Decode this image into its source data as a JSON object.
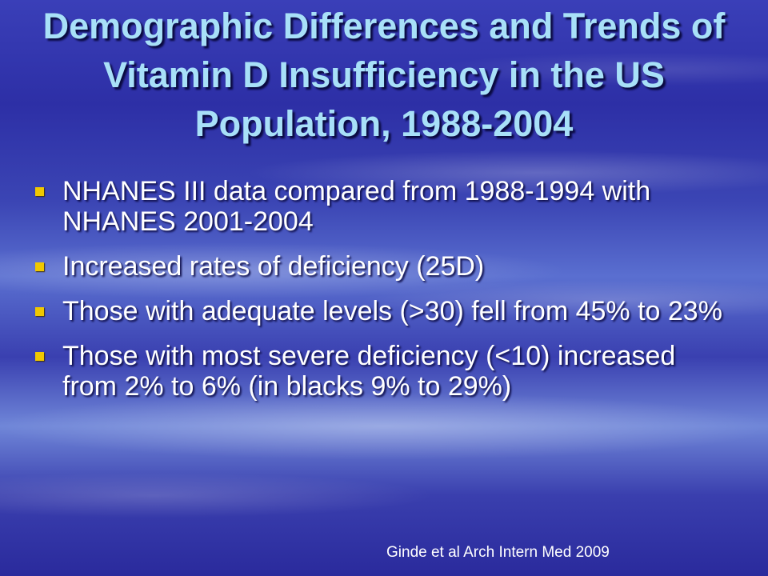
{
  "slide": {
    "title": "Demographic Differences and Trends of Vitamin D Insufficiency in the US Population, 1988-2004",
    "bullets": [
      "NHANES III data compared from 1988-1994 with NHANES 2001-2004",
      "Increased rates of deficiency (25D)",
      "Those with adequate levels (>30) fell from 45% to 23%",
      "Those with most severe deficiency (<10) increased from 2% to 6% (in blacks 9% to 29%)"
    ],
    "citation": "Ginde et al Arch Intern Med 2009"
  },
  "colors": {
    "background": "#3a3fb8",
    "title_text": "#a8e0f8",
    "bullet_marker": "#f0c800",
    "body_text": "#ffffff"
  }
}
